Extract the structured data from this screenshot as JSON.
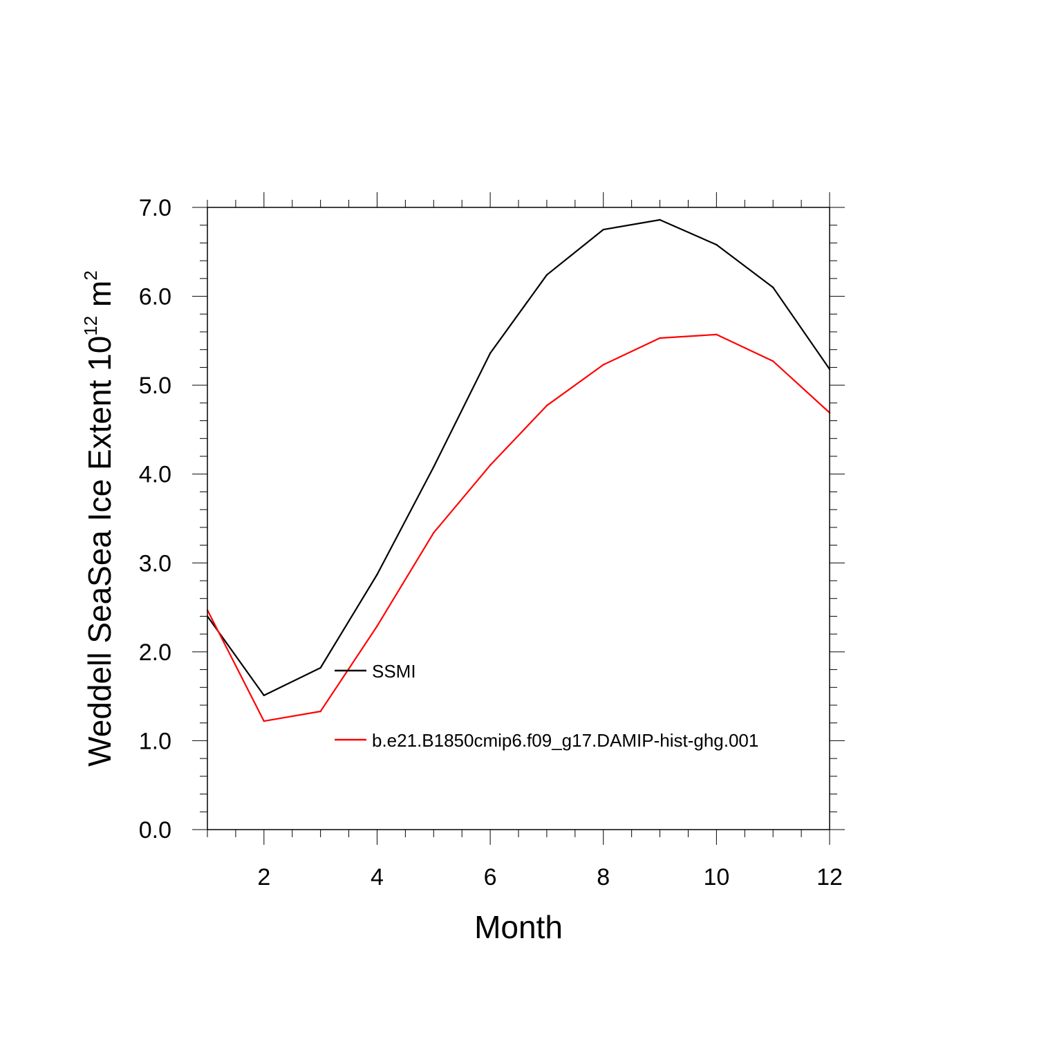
{
  "chart_data": {
    "type": "line",
    "xlabel": "Month",
    "ylabel": {
      "prefix": "Weddell SeaSea Ice Extent 10",
      "superscript1": "12",
      "mid": " m",
      "superscript2": "2"
    },
    "xlim": [
      1,
      12
    ],
    "ylim": [
      0,
      7
    ],
    "xticks": [
      2,
      4,
      6,
      8,
      10,
      12
    ],
    "yticks": [
      0,
      1,
      2,
      3,
      4,
      5,
      6,
      7
    ],
    "ytick_labels": [
      "0.0",
      "1.0",
      "2.0",
      "3.0",
      "4.0",
      "5.0",
      "6.0",
      "7.0"
    ],
    "x": [
      1,
      2,
      3,
      4,
      5,
      6,
      7,
      8,
      9,
      10,
      11,
      12
    ],
    "series": [
      {
        "name": "SSMI",
        "color": "#000000",
        "values": [
          2.4,
          1.51,
          1.82,
          2.87,
          4.08,
          5.36,
          6.24,
          6.75,
          6.86,
          6.58,
          6.1,
          5.18
        ]
      },
      {
        "name": "b.e21.B1850cmip6.f09_g17.DAMIP-hist-ghg.001",
        "color": "#ff0000",
        "values": [
          2.47,
          1.22,
          1.33,
          2.29,
          3.34,
          4.1,
          4.77,
          5.23,
          5.53,
          5.57,
          5.27,
          4.69
        ]
      }
    ],
    "legend_position": "lower-center",
    "grid": false
  }
}
